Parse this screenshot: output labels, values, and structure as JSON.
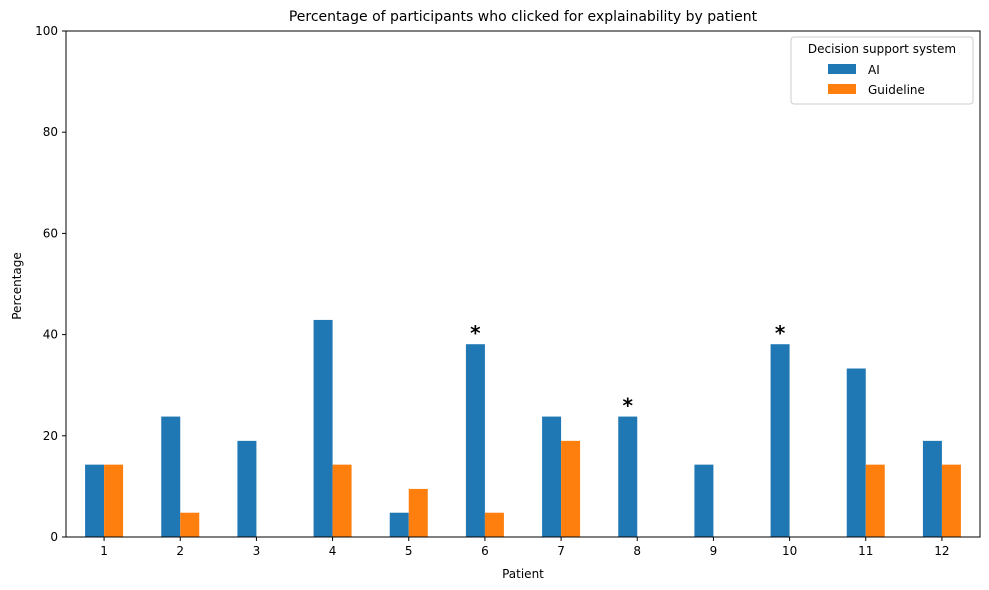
{
  "chart_data": {
    "type": "bar",
    "title": "Percentage of participants who clicked for explainability by patient",
    "xlabel": "Patient",
    "ylabel": "Percentage",
    "ylim": [
      0,
      100
    ],
    "yticks": [
      0,
      20,
      40,
      60,
      80,
      100
    ],
    "categories": [
      "1",
      "2",
      "3",
      "4",
      "5",
      "6",
      "7",
      "8",
      "9",
      "10",
      "11",
      "12"
    ],
    "series": [
      {
        "name": "AI",
        "color": "#1f77b4",
        "values": [
          14.3,
          23.8,
          19.0,
          42.9,
          4.8,
          38.1,
          23.8,
          23.8,
          14.3,
          38.1,
          33.3,
          19.0
        ]
      },
      {
        "name": "Guideline",
        "color": "#ff7f0e",
        "values": [
          14.3,
          4.8,
          0,
          14.3,
          9.5,
          4.8,
          19.0,
          0,
          0,
          0,
          14.3,
          14.3
        ]
      }
    ],
    "legend": {
      "title": "Decision support system",
      "position": "top-right"
    },
    "annotations": [
      {
        "text": "*",
        "category": "6",
        "y": 38.1
      },
      {
        "text": "*",
        "category": "8",
        "y": 23.8
      },
      {
        "text": "*",
        "category": "10",
        "y": 38.1
      }
    ],
    "grid": false
  }
}
